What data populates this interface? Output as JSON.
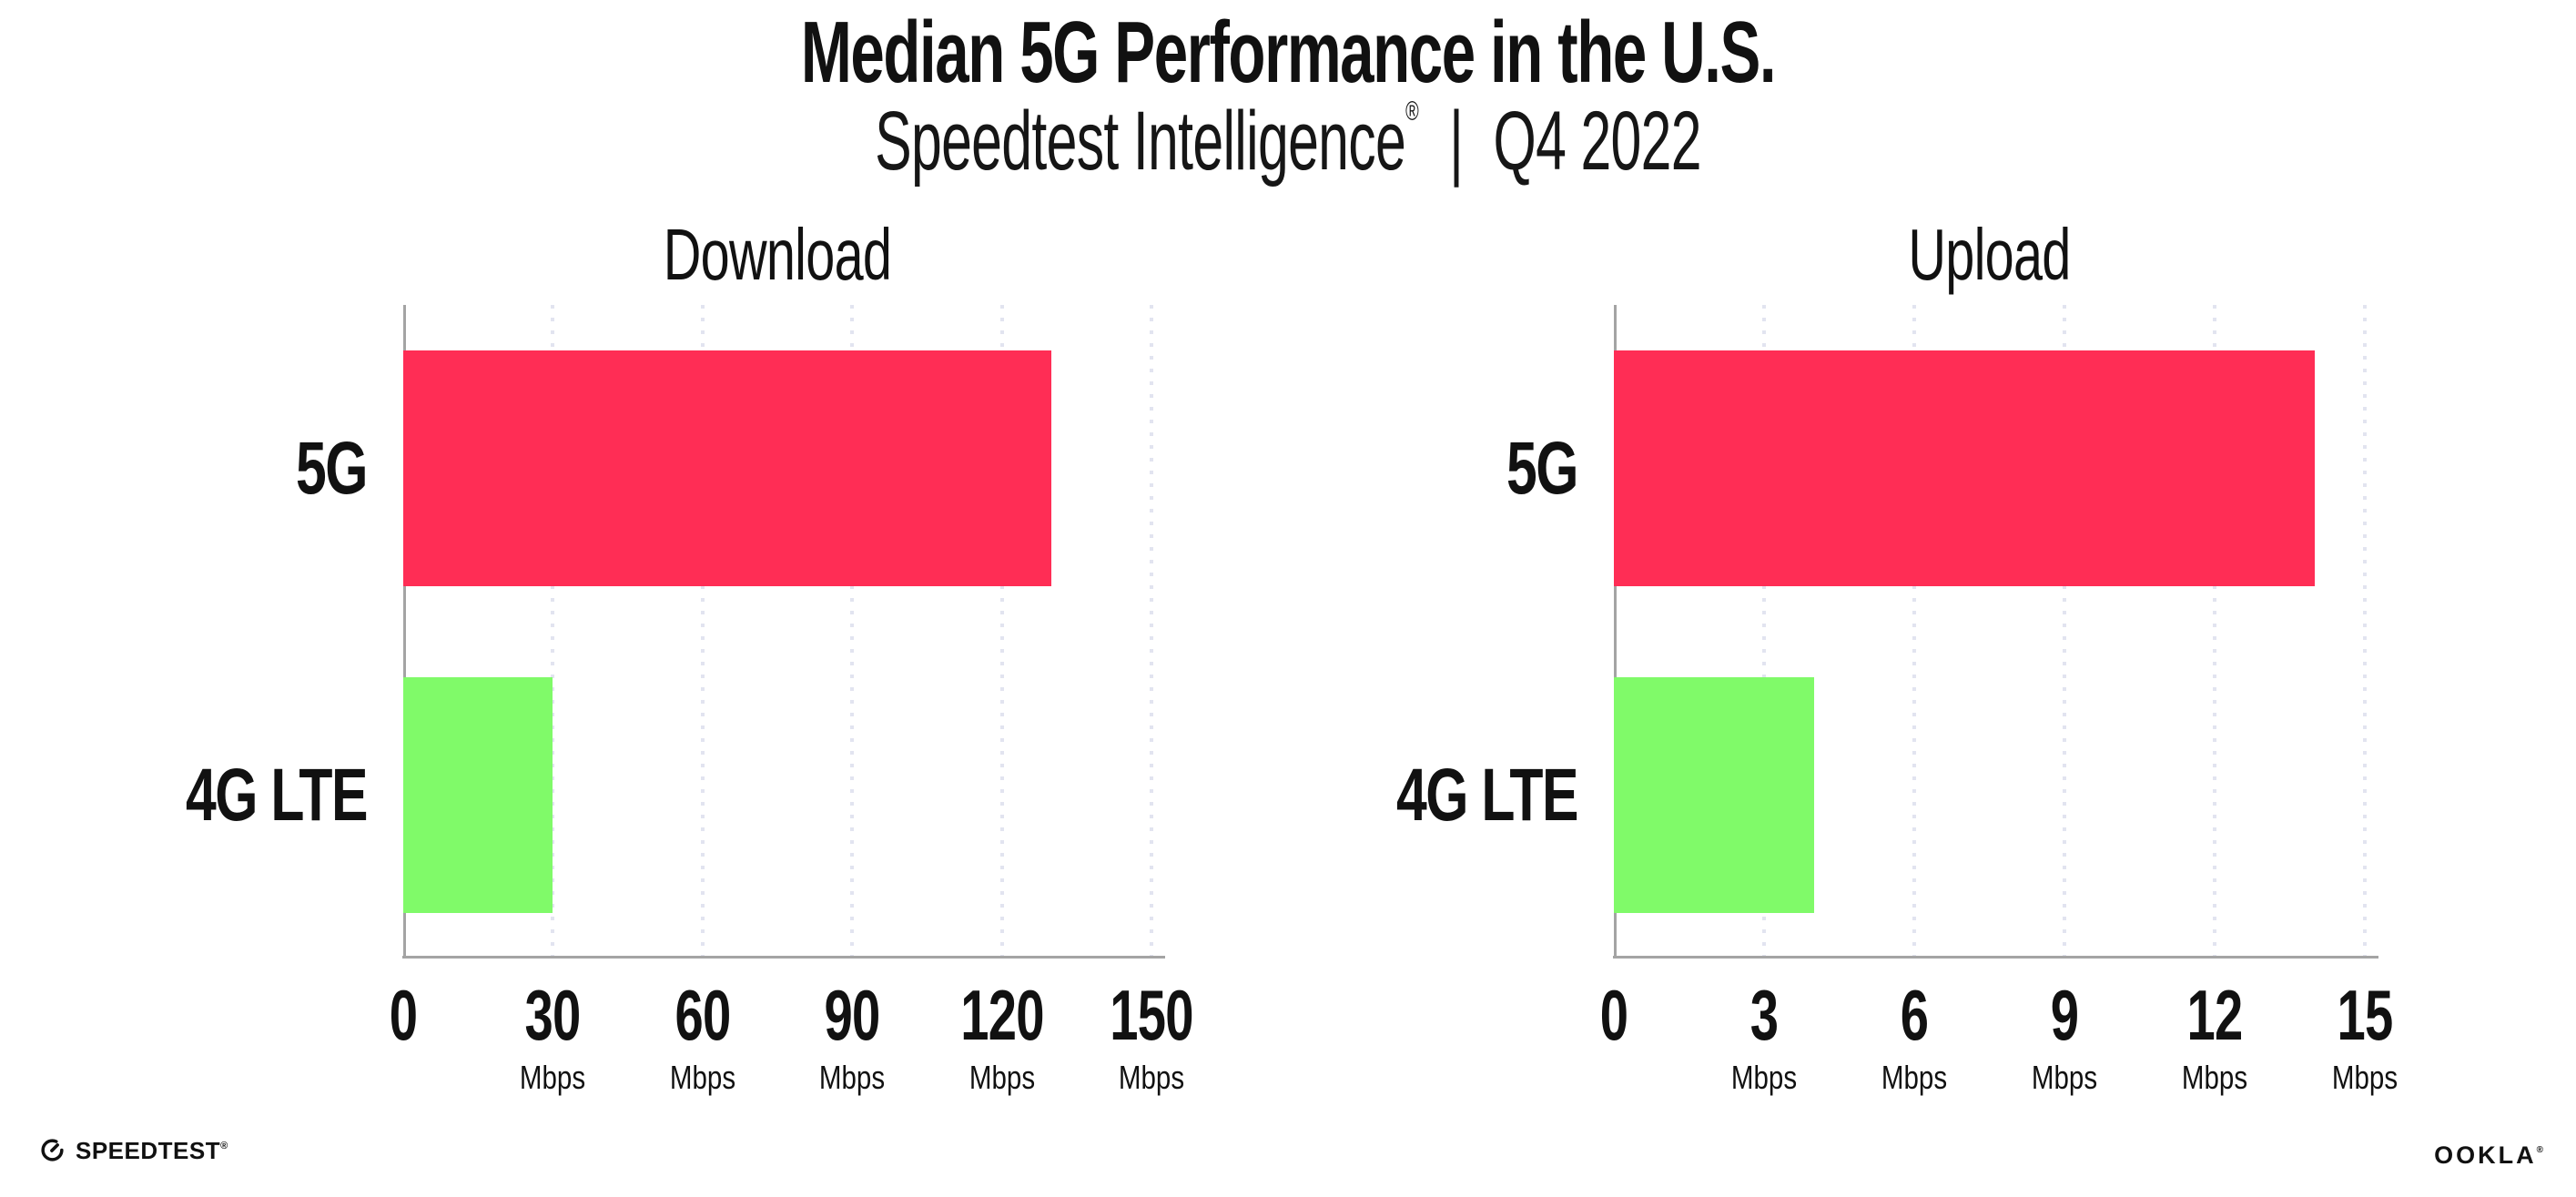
{
  "header": {
    "title": "Median 5G Performance in the U.S.",
    "subtitle": {
      "brand": "Speedtest Intelligence",
      "registered_mark": "®",
      "separator": "|",
      "period": "Q4 2022"
    }
  },
  "chart_data": [
    {
      "type": "bar",
      "orientation": "horizontal",
      "title": "Download",
      "categories": [
        "5G",
        "4G LTE"
      ],
      "values": [
        130,
        30
      ],
      "unit": "Mbps",
      "xlim": [
        0,
        150
      ],
      "xticks": [
        0,
        30,
        60,
        90,
        120,
        150
      ],
      "tick_unit_label": "Mbps",
      "grid": "vertical-dotted",
      "legend": "none",
      "bar_colors": [
        "#ff2d55",
        "#80fa69"
      ]
    },
    {
      "type": "bar",
      "orientation": "horizontal",
      "title": "Upload",
      "categories": [
        "5G",
        "4G LTE"
      ],
      "values": [
        14,
        4
      ],
      "unit": "Mbps",
      "xlim": [
        0,
        15
      ],
      "xticks": [
        0,
        3,
        6,
        9,
        12,
        15
      ],
      "tick_unit_label": "Mbps",
      "grid": "vertical-dotted",
      "legend": "none",
      "bar_colors": [
        "#ff2d55",
        "#80fa69"
      ]
    }
  ],
  "footer": {
    "speedtest_logo": {
      "text": "SPEEDTEST",
      "registered_mark": "®",
      "icon": "gauge-icon"
    },
    "ookla_logo": {
      "text": "OOKLA",
      "registered_mark": "®"
    }
  },
  "colors": {
    "bar_5g": "#ff2d55",
    "bar_4g_lte": "#80fa69",
    "axis": "#a4a4a4",
    "gridline": "#e2e4f0",
    "text": "#111111",
    "background": "#ffffff"
  }
}
